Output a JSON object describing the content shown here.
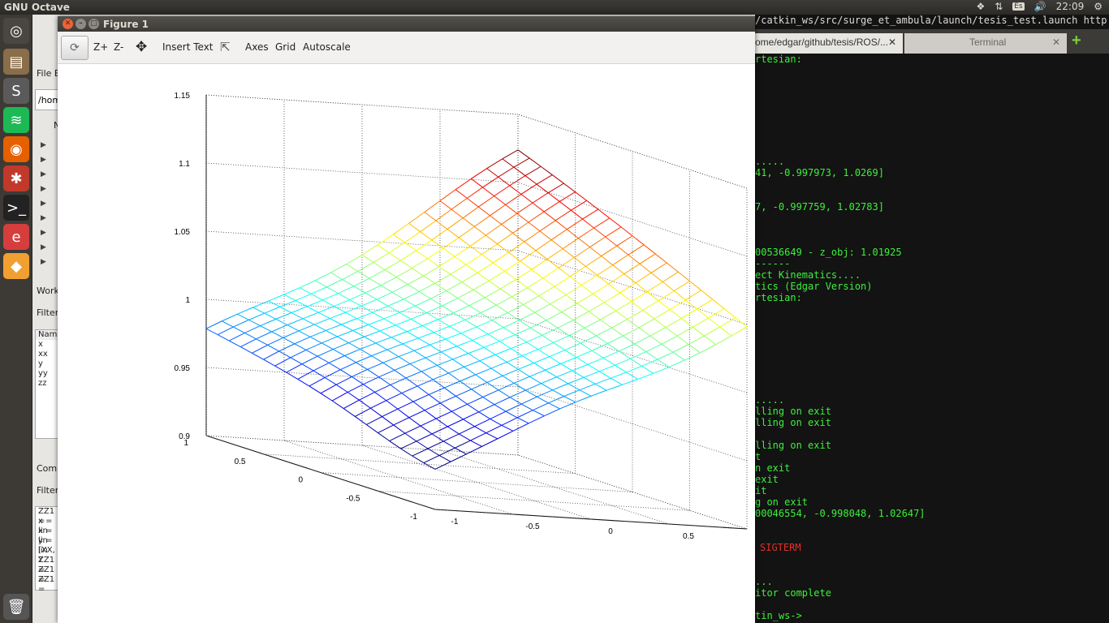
{
  "system": {
    "app_title": "GNU Octave",
    "clock": "22:09",
    "keyboard": "Es"
  },
  "octave": {
    "file_browser_label": "File B",
    "path_field": "/hom",
    "name_col": "N",
    "workspace_label": "Work",
    "filter_label": "Filter",
    "var_header": "Nam",
    "vars": [
      "x",
      "xx",
      "y",
      "yy",
      "zz"
    ],
    "command_label": "Comm",
    "filter2_label": "Filter",
    "history": [
      "ZZ1 =",
      "x = lin",
      "x = lin",
      "y = lin",
      "[XX, Y",
      "ZZ1 =",
      "ZZ1 =",
      "ZZ1 =",
      "ZZ1"
    ]
  },
  "figure": {
    "title": "Figure 1",
    "toolbar": {
      "zoom_in": "Z+",
      "zoom_out": "Z-",
      "insert_text": "Insert Text",
      "axes": "Axes",
      "grid": "Grid",
      "autoscale": "Autoscale"
    }
  },
  "terminal": {
    "header": "/catkin_ws/src/surge_et_ambula/launch/tesis_test.launch http://localhost:113",
    "tab1": "ome/edgar/github/tesis/ROS/...",
    "tab2": "Terminal",
    "lines": [
      {
        "text": "rtesian:",
        "row": 0
      },
      {
        "text": ".....",
        "row": 9
      },
      {
        "text": "41, -0.997973, 1.0269]",
        "row": 10
      },
      {
        "text": "7, -0.997759, 1.02783]",
        "row": 13
      },
      {
        "text": "00536649 - z_obj: 1.01925",
        "row": 17
      },
      {
        "text": "------",
        "row": 18
      },
      {
        "text": "ect Kinematics....",
        "row": 19
      },
      {
        "text": "tics (Edgar Version)",
        "row": 20
      },
      {
        "text": "rtesian:",
        "row": 21
      },
      {
        "text": ".....",
        "row": 30
      },
      {
        "text": "lling on exit",
        "row": 31
      },
      {
        "text": "lling on exit",
        "row": 32
      },
      {
        "text": "lling on exit",
        "row": 34
      },
      {
        "text": "t",
        "row": 35
      },
      {
        "text": "n exit",
        "row": 36
      },
      {
        "text": "exit",
        "row": 37
      },
      {
        "text": "it",
        "row": 38
      },
      {
        "text": "g on exit",
        "row": 39
      },
      {
        "text": "00046554, -0.998048, 1.02647]",
        "row": 40
      },
      {
        "text": "SIGTERM",
        "row": 43,
        "red": true
      },
      {
        "text": "...",
        "row": 46
      },
      {
        "text": "itor complete",
        "row": 47
      },
      {
        "text": "tin_ws->",
        "row": 49
      }
    ]
  },
  "chart_data": {
    "type": "surface",
    "title": "",
    "xlabel": "",
    "ylabel": "",
    "zlabel": "",
    "xlim": [
      -1,
      1
    ],
    "ylim": [
      -1,
      1
    ],
    "zlim": [
      0.9,
      1.15
    ],
    "x_ticks": [
      "-1",
      "-0.5",
      "0",
      "0.5",
      "1"
    ],
    "y_ticks": [
      "-1",
      "-0.5",
      "0",
      "0.5",
      "1"
    ],
    "z_ticks": [
      "0.9",
      "0.95",
      "1",
      "1.05",
      "1.1",
      "1.15"
    ],
    "grid": true,
    "colormap": "jet",
    "grid_resolution": 21,
    "corner_values": {
      "x-1_y-1": 0.935,
      "x-1_y1": 0.973,
      "x1_y-1": 1.05,
      "x1_y1": 1.118
    },
    "z_range_shown": [
      0.935,
      1.118
    ]
  }
}
